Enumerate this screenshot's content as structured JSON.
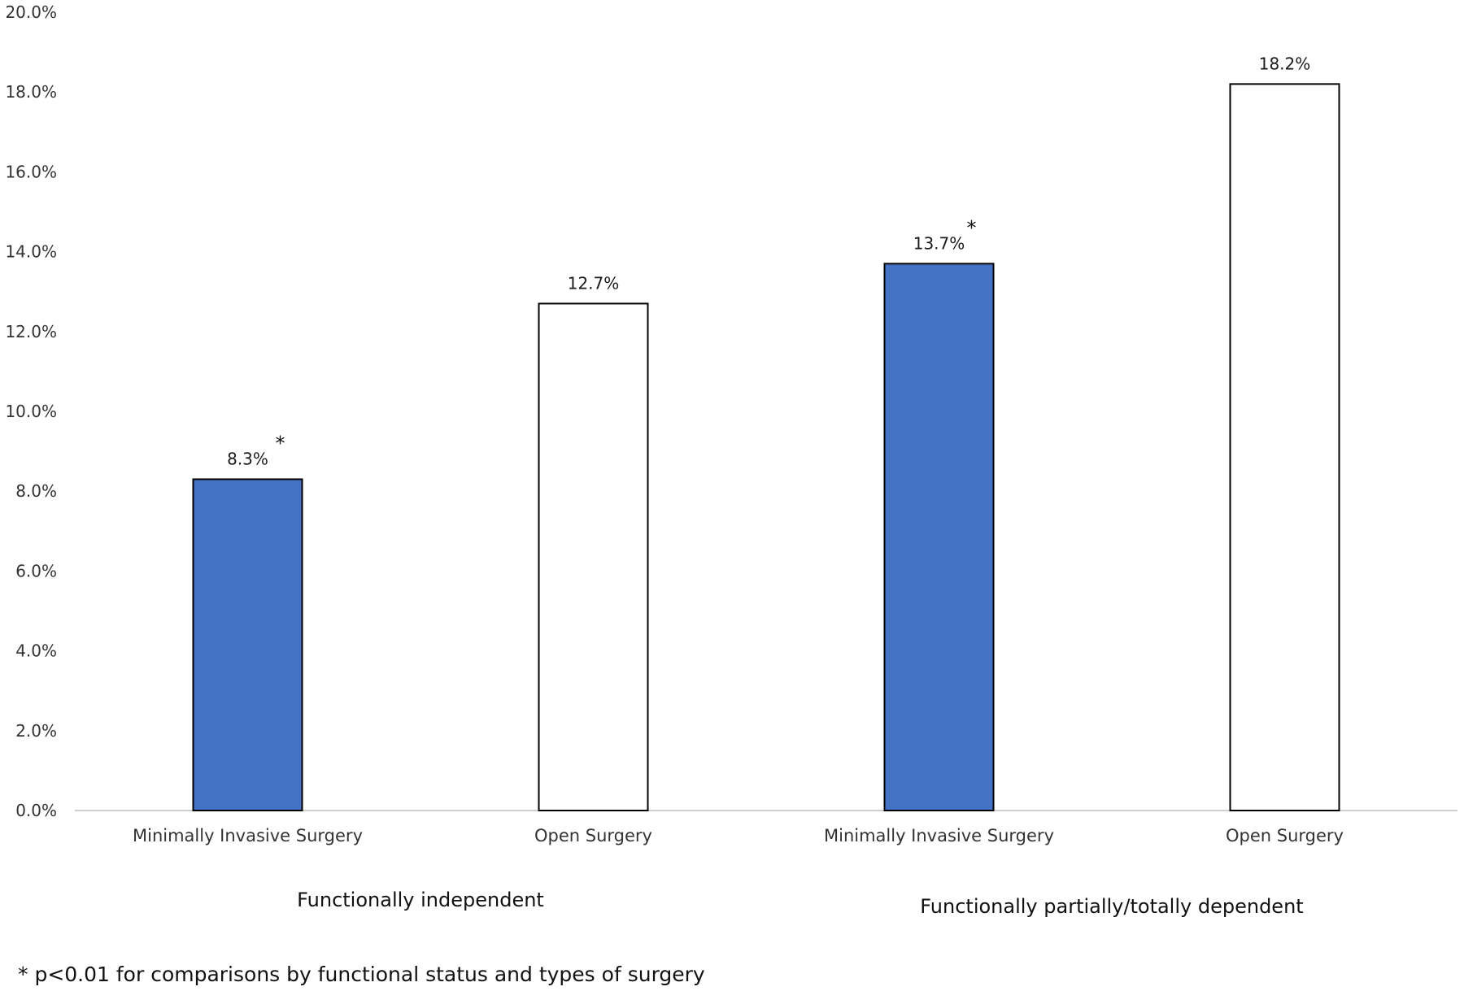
{
  "chart_data": {
    "type": "bar",
    "title": "",
    "xlabel": "",
    "ylabel": "",
    "ylim": [
      0,
      20
    ],
    "y_tick_step": 2,
    "y_tick_labels": [
      "0.0%",
      "2.0%",
      "4.0%",
      "6.0%",
      "8.0%",
      "10.0%",
      "12.0%",
      "14.0%",
      "16.0%",
      "18.0%",
      "20.0%"
    ],
    "grid": false,
    "categories": [
      "Minimally Invasive Surgery",
      "Open Surgery",
      "Minimally Invasive Surgery",
      "Open Surgery"
    ],
    "values": [
      8.3,
      12.7,
      13.7,
      18.2
    ],
    "data_labels": [
      "8.3%",
      "12.7%",
      "13.7%",
      "18.2%"
    ],
    "significance_marks": [
      "*",
      "",
      "*",
      ""
    ],
    "groups": [
      {
        "label": "Functionally independent",
        "categories": [
          0,
          1
        ]
      },
      {
        "label": "Functionally partially/totally dependent",
        "categories": [
          2,
          3
        ]
      }
    ],
    "bar_fills": [
      "#4472C4",
      "#FFFFFF",
      "#4472C4",
      "#FFFFFF"
    ],
    "bar_outline": "#000000",
    "axis_color": "#BFBFBF",
    "footnote": "* p<0.01 for comparisons by functional status and types of surgery"
  }
}
